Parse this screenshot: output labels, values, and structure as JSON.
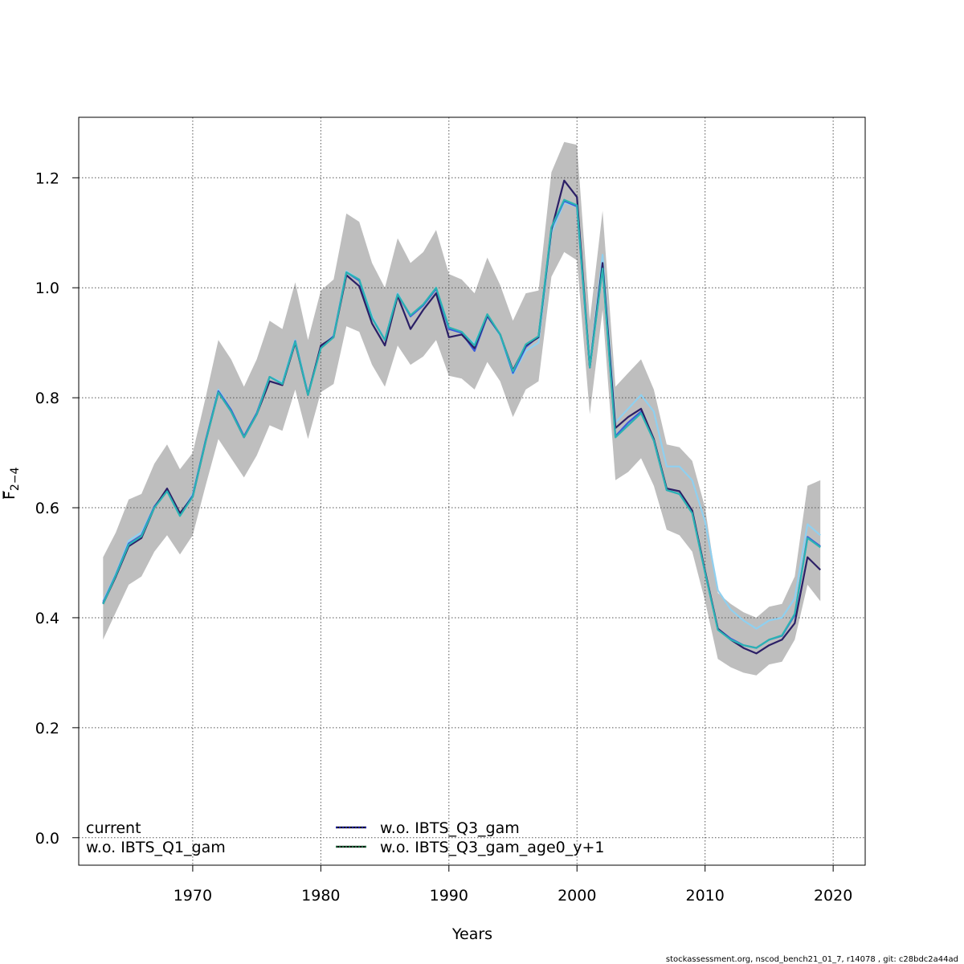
{
  "chart_data": {
    "type": "line",
    "xlabel": "Years",
    "ylabel_main": "F",
    "ylabel_sub": "2−4",
    "xlim": [
      1961.1,
      2022.5
    ],
    "ylim": [
      -0.05,
      1.31
    ],
    "xticks": [
      1970,
      1980,
      1990,
      2000,
      2010,
      2020
    ],
    "yticks": [
      0.0,
      0.2,
      0.4,
      0.6,
      0.8,
      1.0,
      1.2
    ],
    "ytick_labels": [
      "0.0",
      "0.2",
      "0.4",
      "0.6",
      "0.8",
      "1.0",
      "1.2"
    ],
    "grid": true,
    "legend_position": "bottom-left",
    "x": [
      1963,
      1964,
      1965,
      1966,
      1967,
      1968,
      1969,
      1970,
      1971,
      1972,
      1973,
      1974,
      1975,
      1976,
      1977,
      1978,
      1979,
      1980,
      1981,
      1982,
      1983,
      1984,
      1985,
      1986,
      1987,
      1988,
      1989,
      1990,
      1991,
      1992,
      1993,
      1994,
      1995,
      1996,
      1997,
      1998,
      1999,
      2000,
      2001,
      2002,
      2003,
      2004,
      2005,
      2006,
      2007,
      2008,
      2009,
      2010,
      2011,
      2012,
      2013,
      2014,
      2015,
      2016,
      2017,
      2018,
      2019
    ],
    "confidence_band": {
      "color": "#bebebe",
      "lower": [
        0.36,
        0.41,
        0.46,
        0.475,
        0.52,
        0.55,
        0.515,
        0.55,
        0.64,
        0.725,
        0.69,
        0.655,
        0.695,
        0.75,
        0.74,
        0.815,
        0.725,
        0.81,
        0.825,
        0.93,
        0.92,
        0.86,
        0.82,
        0.895,
        0.86,
        0.875,
        0.905,
        0.84,
        0.835,
        0.815,
        0.865,
        0.83,
        0.765,
        0.815,
        0.83,
        1.02,
        1.065,
        1.05,
        0.77,
        0.96,
        0.65,
        0.665,
        0.69,
        0.64,
        0.56,
        0.55,
        0.52,
        0.43,
        0.325,
        0.31,
        0.3,
        0.295,
        0.315,
        0.32,
        0.36,
        0.46,
        0.43
      ],
      "upper": [
        0.51,
        0.555,
        0.615,
        0.625,
        0.68,
        0.715,
        0.67,
        0.7,
        0.8,
        0.905,
        0.87,
        0.82,
        0.87,
        0.94,
        0.925,
        1.01,
        0.905,
        0.995,
        1.015,
        1.135,
        1.12,
        1.045,
        1.0,
        1.09,
        1.045,
        1.065,
        1.105,
        1.025,
        1.015,
        0.99,
        1.055,
        1.005,
        0.94,
        0.99,
        0.995,
        1.21,
        1.265,
        1.26,
        0.94,
        1.14,
        0.82,
        0.845,
        0.87,
        0.815,
        0.715,
        0.71,
        0.685,
        0.6,
        0.445,
        0.425,
        0.41,
        0.4,
        0.42,
        0.425,
        0.475,
        0.64,
        0.65
      ]
    },
    "series": [
      {
        "name": "current",
        "color": "#2b1f66",
        "dash": "solid",
        "values": [
          0.425,
          0.475,
          0.53,
          0.545,
          0.6,
          0.635,
          0.59,
          0.62,
          0.72,
          0.81,
          0.775,
          0.728,
          0.77,
          0.83,
          0.823,
          0.9,
          0.805,
          0.895,
          0.91,
          1.023,
          1.003,
          0.935,
          0.895,
          0.985,
          0.925,
          0.96,
          0.99,
          0.91,
          0.915,
          0.89,
          0.95,
          0.915,
          0.85,
          0.895,
          0.91,
          1.105,
          1.195,
          1.165,
          0.855,
          1.045,
          0.745,
          0.765,
          0.78,
          0.725,
          0.635,
          0.63,
          0.595,
          0.485,
          0.38,
          0.36,
          0.345,
          0.335,
          0.35,
          0.36,
          0.39,
          0.51,
          0.487
        ]
      },
      {
        "name": "w.o. IBTS_Q1_gam",
        "color": "#3b5bdb",
        "dash": "solid",
        "values": [
          0.427,
          0.478,
          0.535,
          0.55,
          0.602,
          0.632,
          0.588,
          0.622,
          0.722,
          0.812,
          0.778,
          0.73,
          0.772,
          0.838,
          0.825,
          0.903,
          0.806,
          0.892,
          0.912,
          1.028,
          1.013,
          0.945,
          0.905,
          0.988,
          0.948,
          0.968,
          0.998,
          0.925,
          0.918,
          0.885,
          0.948,
          0.915,
          0.845,
          0.892,
          0.912,
          1.108,
          1.158,
          1.148,
          0.855,
          1.038,
          0.73,
          0.755,
          0.775,
          0.722,
          0.632,
          0.625,
          0.592,
          0.482,
          0.38,
          0.362,
          0.35,
          0.345,
          0.36,
          0.367,
          0.405,
          0.547,
          0.53
        ]
      },
      {
        "name": "w.o. IBTS_Q3_gam",
        "color": "#8fd0f0",
        "dash": "dotted",
        "values": [
          0.43,
          0.48,
          0.54,
          0.555,
          0.602,
          0.632,
          0.588,
          0.625,
          0.722,
          0.815,
          0.778,
          0.73,
          0.772,
          0.838,
          0.828,
          0.905,
          0.808,
          0.893,
          0.913,
          1.03,
          1.015,
          0.948,
          0.905,
          0.99,
          0.948,
          0.968,
          1.0,
          0.928,
          0.918,
          0.898,
          0.95,
          0.913,
          0.843,
          0.885,
          0.9,
          1.1,
          1.155,
          1.148,
          0.86,
          1.06,
          0.755,
          0.78,
          0.805,
          0.775,
          0.675,
          0.675,
          0.65,
          0.575,
          0.45,
          0.415,
          0.395,
          0.38,
          0.395,
          0.4,
          0.435,
          0.57,
          0.55
        ]
      },
      {
        "name": "w.o. IBTS_Q3_gam_age0_y+1",
        "color": "#2ab3b3",
        "dash": "dotted",
        "values": [
          0.425,
          0.477,
          0.533,
          0.548,
          0.6,
          0.63,
          0.585,
          0.62,
          0.72,
          0.81,
          0.775,
          0.728,
          0.77,
          0.838,
          0.825,
          0.902,
          0.805,
          0.89,
          0.91,
          1.028,
          1.015,
          0.945,
          0.905,
          0.988,
          0.95,
          0.97,
          1.0,
          0.928,
          0.92,
          0.895,
          0.952,
          0.915,
          0.848,
          0.897,
          0.912,
          1.11,
          1.16,
          1.15,
          0.855,
          1.035,
          0.728,
          0.75,
          0.772,
          0.722,
          0.632,
          0.625,
          0.59,
          0.482,
          0.378,
          0.36,
          0.35,
          0.345,
          0.36,
          0.368,
          0.407,
          0.545,
          0.528
        ]
      }
    ],
    "legend": [
      {
        "label": "current",
        "has_swatch": false
      },
      {
        "label": "w.o. IBTS_Q1_gam",
        "has_swatch": false
      },
      {
        "label": "w.o. IBTS_Q3_gam",
        "has_swatch": true,
        "color": "#1a1aa0",
        "dash": "dotted"
      },
      {
        "label": "w.o. IBTS_Q3_gam_age0_y+1",
        "has_swatch": true,
        "color": "#1b6b3b",
        "dash": "dotted"
      }
    ]
  },
  "footer": "stockassessment.org, nscod_bench21_01_7, r14078 , git: c28bdc2a44ad"
}
